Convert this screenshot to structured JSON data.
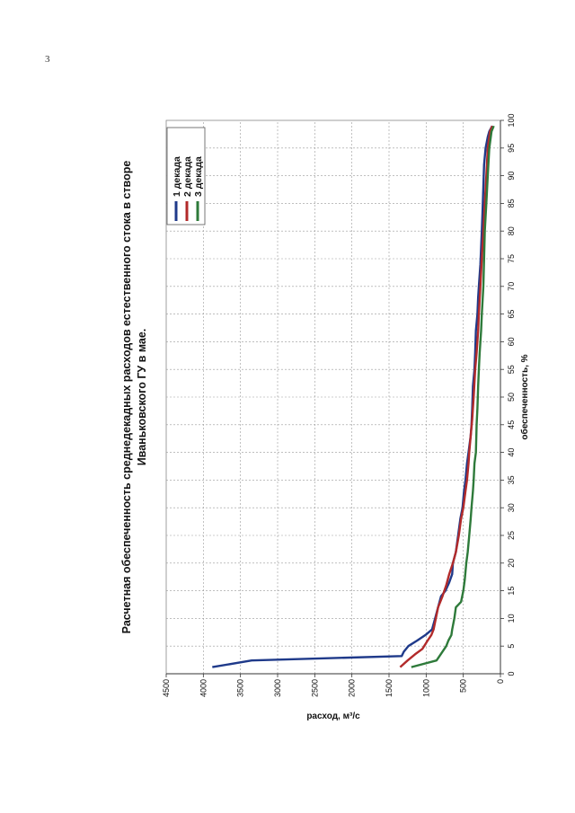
{
  "page": {
    "number": "3"
  },
  "chart_data": {
    "type": "line",
    "orientation": "rotated 90° counter-clockwise on the page",
    "title": "Расчетная обеспеченность среднедекадных расходов естественного стока в створе Иваньковского ГУ в мае.",
    "title_lines": [
      "Расчетная обеспеченность среднедекадных расходов естественного стока в створе",
      "Иваньковского ГУ в мае."
    ],
    "xlabel": "обеспеченность, %",
    "ylabel": "расход, м³/с",
    "xlim": [
      0,
      100
    ],
    "ylim": [
      0,
      4500
    ],
    "xticks": [
      "0",
      "5",
      "10",
      "15",
      "20",
      "25",
      "30",
      "35",
      "40",
      "45",
      "50",
      "55",
      "60",
      "65",
      "70",
      "75",
      "80",
      "85",
      "90",
      "95",
      "100"
    ],
    "yticks": [
      "0",
      "500",
      "1000",
      "1500",
      "2000",
      "2500",
      "3000",
      "3500",
      "4000",
      "4500"
    ],
    "grid": true,
    "legend_position": "top-right",
    "series": [
      {
        "name": "1 декада",
        "color": "#1f3a8a",
        "points": [
          [
            1.2,
            3880
          ],
          [
            2.4,
            3350
          ],
          [
            3.2,
            1330
          ],
          [
            4,
            1300
          ],
          [
            5,
            1240
          ],
          [
            6,
            1120
          ],
          [
            7,
            1010
          ],
          [
            8,
            920
          ],
          [
            10,
            880
          ],
          [
            12,
            840
          ],
          [
            14,
            800
          ],
          [
            15,
            740
          ],
          [
            16.5,
            690
          ],
          [
            18,
            650
          ],
          [
            20,
            640
          ],
          [
            22,
            600
          ],
          [
            25,
            570
          ],
          [
            28,
            540
          ],
          [
            30,
            510
          ],
          [
            33,
            490
          ],
          [
            35,
            470
          ],
          [
            38,
            450
          ],
          [
            40,
            430
          ],
          [
            42,
            410
          ],
          [
            43,
            400
          ],
          [
            45,
            390
          ],
          [
            48,
            380
          ],
          [
            52,
            370
          ],
          [
            55,
            350
          ],
          [
            58,
            340
          ],
          [
            62,
            330
          ],
          [
            65,
            310
          ],
          [
            68,
            300
          ],
          [
            70,
            290
          ],
          [
            74,
            270
          ],
          [
            77,
            260
          ],
          [
            80,
            250
          ],
          [
            84,
            240
          ],
          [
            88,
            230
          ],
          [
            92,
            220
          ],
          [
            95,
            200
          ],
          [
            97,
            170
          ],
          [
            98,
            150
          ],
          [
            99,
            110
          ]
        ]
      },
      {
        "name": "2 декада",
        "color": "#b22a2a",
        "points": [
          [
            1.2,
            1350
          ],
          [
            2.4,
            1250
          ],
          [
            3.5,
            1150
          ],
          [
            4.5,
            1050
          ],
          [
            6,
            980
          ],
          [
            7,
            930
          ],
          [
            8,
            900
          ],
          [
            10,
            870
          ],
          [
            12,
            840
          ],
          [
            14,
            780
          ],
          [
            16,
            730
          ],
          [
            18,
            690
          ],
          [
            20,
            640
          ],
          [
            22,
            600
          ],
          [
            25,
            560
          ],
          [
            28,
            530
          ],
          [
            30,
            500
          ],
          [
            33,
            470
          ],
          [
            35,
            450
          ],
          [
            38,
            430
          ],
          [
            40,
            420
          ],
          [
            43,
            400
          ],
          [
            46,
            380
          ],
          [
            50,
            360
          ],
          [
            55,
            340
          ],
          [
            58,
            320
          ],
          [
            62,
            300
          ],
          [
            65,
            290
          ],
          [
            70,
            270
          ],
          [
            75,
            250
          ],
          [
            80,
            230
          ],
          [
            85,
            210
          ],
          [
            90,
            190
          ],
          [
            95,
            170
          ],
          [
            98,
            140
          ],
          [
            99,
            110
          ]
        ]
      },
      {
        "name": "3 декада",
        "color": "#2e7a3a",
        "points": [
          [
            1.2,
            1200
          ],
          [
            2.4,
            860
          ],
          [
            4,
            780
          ],
          [
            5,
            730
          ],
          [
            6,
            700
          ],
          [
            7,
            660
          ],
          [
            8,
            650
          ],
          [
            10,
            620
          ],
          [
            12,
            600
          ],
          [
            13,
            530
          ],
          [
            15,
            500
          ],
          [
            17,
            480
          ],
          [
            20,
            460
          ],
          [
            22,
            440
          ],
          [
            25,
            420
          ],
          [
            28,
            400
          ],
          [
            30,
            390
          ],
          [
            33,
            370
          ],
          [
            35,
            360
          ],
          [
            38,
            350
          ],
          [
            40,
            330
          ],
          [
            45,
            320
          ],
          [
            48,
            310
          ],
          [
            52,
            300
          ],
          [
            55,
            290
          ],
          [
            58,
            280
          ],
          [
            62,
            260
          ],
          [
            65,
            250
          ],
          [
            70,
            230
          ],
          [
            75,
            220
          ],
          [
            80,
            210
          ],
          [
            85,
            190
          ],
          [
            90,
            170
          ],
          [
            95,
            150
          ],
          [
            98,
            120
          ],
          [
            99,
            90
          ]
        ]
      }
    ]
  }
}
